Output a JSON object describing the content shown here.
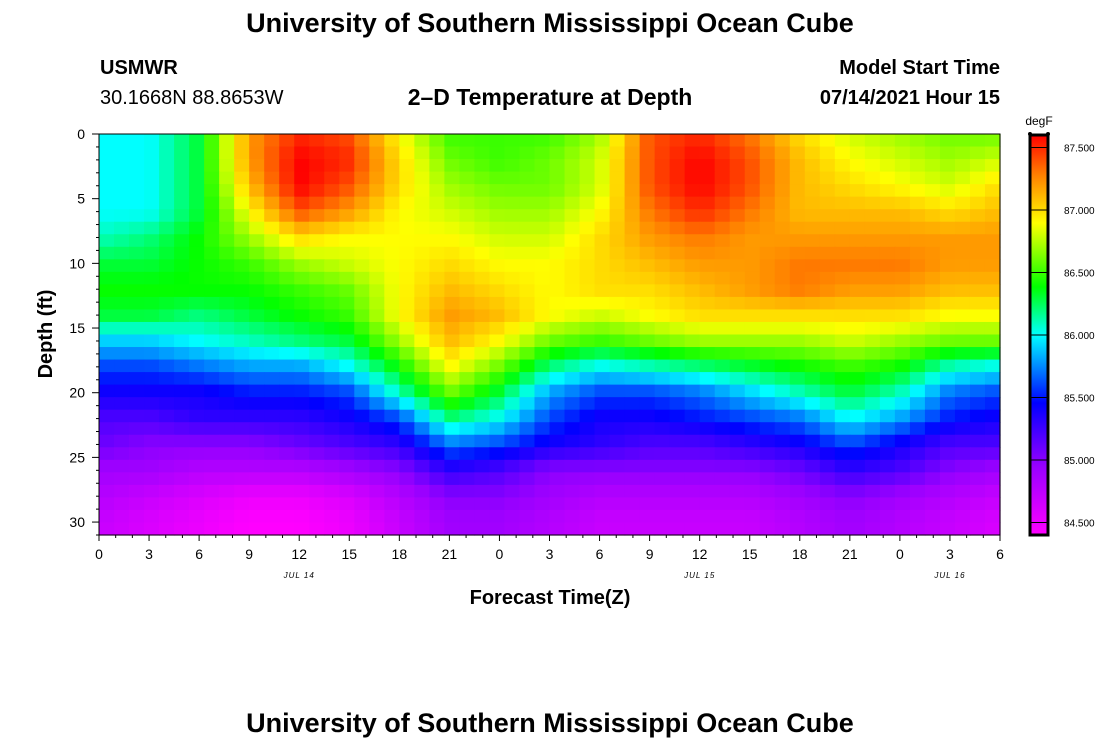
{
  "page": {
    "title_top": "University of Southern Mississippi Ocean Cube",
    "title_bottom": "University of Southern Mississippi Ocean Cube",
    "station_name": "USMWR",
    "station_coords": "30.1668N  88.8653W",
    "plot_title": "2–D Temperature at Depth",
    "model_start_label": "Model Start Time",
    "model_start_value": "07/14/2021 Hour 15"
  },
  "chart_data": {
    "type": "heatmap",
    "title": "2–D Temperature at Depth",
    "xlabel": "Forecast Time(Z)",
    "ylabel": "Depth (ft)",
    "x_tick_labels": [
      "0",
      "3",
      "6",
      "9",
      "12",
      "15",
      "18",
      "21",
      "0",
      "3",
      "6",
      "9",
      "12",
      "15",
      "18",
      "21",
      "0",
      "3",
      "6"
    ],
    "x_range_hours": [
      0,
      54
    ],
    "date_labels": [
      {
        "text": "JUL 14",
        "hour": 12
      },
      {
        "text": "JUL 15",
        "hour": 36
      },
      {
        "text": "JUL 16",
        "hour": 51
      }
    ],
    "y_ticks": [
      0,
      5,
      10,
      15,
      20,
      25,
      30
    ],
    "ylim": [
      0,
      31
    ],
    "y_inverted": true,
    "colorbar": {
      "unit": "degF",
      "min": 84.4,
      "max": 87.6,
      "ticks": [
        "87.500",
        "87.000",
        "86.500",
        "86.000",
        "85.500",
        "85.000",
        "84.500"
      ],
      "tick_values": [
        87.5,
        87.0,
        86.5,
        86.0,
        85.5,
        85.0,
        84.5
      ]
    },
    "grid_hours": [
      0,
      3,
      6,
      9,
      12,
      15,
      18,
      21,
      24,
      27,
      30,
      33,
      36,
      39,
      42,
      45,
      48,
      51,
      54
    ],
    "grid_depths": [
      0,
      2,
      4,
      6,
      8,
      10,
      12,
      14,
      16,
      18,
      20,
      22,
      24,
      26,
      28,
      30
    ],
    "values": [
      [
        86.0,
        86.0,
        86.3,
        87.2,
        87.5,
        87.4,
        86.9,
        86.5,
        86.5,
        86.5,
        86.7,
        87.4,
        87.5,
        87.3,
        87.0,
        86.8,
        86.7,
        86.6,
        86.6
      ],
      [
        86.0,
        86.0,
        86.3,
        87.2,
        87.6,
        87.5,
        87.0,
        86.6,
        86.5,
        86.6,
        86.8,
        87.4,
        87.6,
        87.4,
        87.1,
        86.9,
        86.8,
        86.7,
        86.8
      ],
      [
        86.0,
        86.0,
        86.3,
        87.1,
        87.6,
        87.4,
        87.0,
        86.7,
        86.6,
        86.6,
        86.8,
        87.4,
        87.6,
        87.4,
        87.1,
        87.0,
        86.9,
        86.8,
        87.0
      ],
      [
        86.0,
        86.0,
        86.3,
        86.9,
        87.4,
        87.2,
        86.9,
        86.8,
        86.7,
        86.7,
        86.9,
        87.3,
        87.5,
        87.3,
        87.1,
        87.1,
        87.1,
        87.0,
        87.1
      ],
      [
        86.1,
        86.2,
        86.4,
        86.7,
        87.0,
        86.9,
        86.9,
        86.9,
        86.8,
        86.8,
        87.0,
        87.2,
        87.3,
        87.2,
        87.2,
        87.2,
        87.2,
        87.2,
        87.2
      ],
      [
        86.3,
        86.3,
        86.4,
        86.5,
        86.7,
        86.8,
        86.9,
        87.0,
        86.9,
        86.9,
        87.0,
        87.1,
        87.2,
        87.2,
        87.3,
        87.3,
        87.3,
        87.2,
        87.2
      ],
      [
        86.4,
        86.4,
        86.4,
        86.4,
        86.5,
        86.6,
        86.9,
        87.1,
        87.0,
        86.9,
        87.0,
        87.0,
        87.1,
        87.2,
        87.3,
        87.2,
        87.2,
        87.1,
        87.1
      ],
      [
        86.3,
        86.3,
        86.2,
        86.3,
        86.4,
        86.5,
        86.9,
        87.2,
        87.1,
        86.9,
        86.8,
        86.9,
        87.0,
        87.0,
        87.0,
        87.0,
        87.0,
        86.9,
        86.9
      ],
      [
        85.9,
        85.9,
        86.0,
        86.1,
        86.2,
        86.3,
        86.7,
        87.1,
        86.9,
        86.6,
        86.5,
        86.6,
        86.7,
        86.7,
        86.7,
        86.8,
        86.7,
        86.6,
        86.6
      ],
      [
        85.6,
        85.6,
        85.7,
        85.8,
        85.8,
        86.0,
        86.4,
        86.9,
        86.6,
        86.2,
        86.0,
        86.1,
        86.2,
        86.3,
        86.4,
        86.5,
        86.4,
        86.1,
        86.0
      ],
      [
        85.4,
        85.4,
        85.4,
        85.5,
        85.5,
        85.6,
        86.1,
        86.6,
        86.3,
        85.8,
        85.6,
        85.6,
        85.7,
        85.9,
        86.1,
        86.3,
        86.1,
        85.7,
        85.6
      ],
      [
        85.2,
        85.2,
        85.3,
        85.3,
        85.3,
        85.4,
        85.6,
        86.2,
        86.0,
        85.6,
        85.4,
        85.4,
        85.5,
        85.6,
        85.7,
        86.0,
        85.8,
        85.5,
        85.4
      ],
      [
        85.1,
        85.0,
        85.0,
        85.0,
        85.1,
        85.2,
        85.3,
        85.7,
        85.6,
        85.4,
        85.3,
        85.2,
        85.2,
        85.3,
        85.4,
        85.6,
        85.4,
        85.2,
        85.2
      ],
      [
        84.9,
        84.9,
        84.8,
        84.8,
        84.8,
        84.9,
        85.0,
        85.3,
        85.2,
        85.0,
        85.0,
        85.0,
        85.0,
        85.0,
        85.1,
        85.3,
        85.2,
        85.0,
        84.9
      ],
      [
        84.8,
        84.7,
        84.6,
        84.5,
        84.5,
        84.6,
        84.8,
        85.0,
        85.0,
        84.9,
        84.8,
        84.8,
        84.8,
        84.8,
        84.9,
        85.0,
        84.9,
        84.8,
        84.7
      ],
      [
        84.7,
        84.6,
        84.5,
        84.4,
        84.4,
        84.5,
        84.7,
        84.9,
        84.9,
        84.8,
        84.7,
        84.7,
        84.7,
        84.7,
        84.8,
        84.9,
        84.8,
        84.7,
        84.6
      ]
    ]
  }
}
